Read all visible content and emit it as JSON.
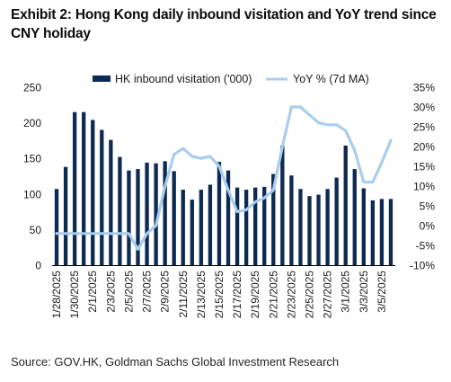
{
  "header": {
    "title": "Exhibit 2: Hong Kong daily inbound visitation and YoY trend since CNY holiday"
  },
  "footer": {
    "source": "Source: GOV.HK, Goldman Sachs Global Investment Research"
  },
  "colors": {
    "bar": "#0d2a52",
    "line": "#a9cdee",
    "text": "#1a1a1a"
  },
  "chart_data": {
    "type": "bar",
    "categories": [
      "1/28/2025",
      "1/29/2025",
      "1/30/2025",
      "1/31/2025",
      "2/1/2025",
      "2/2/2025",
      "2/3/2025",
      "2/4/2025",
      "2/5/2025",
      "2/6/2025",
      "2/7/2025",
      "2/8/2025",
      "2/9/2025",
      "2/10/2025",
      "2/11/2025",
      "2/12/2025",
      "2/13/2025",
      "2/14/2025",
      "2/15/2025",
      "2/16/2025",
      "2/17/2025",
      "2/18/2025",
      "2/19/2025",
      "2/20/2025",
      "2/21/2025",
      "2/22/2025",
      "2/23/2025",
      "2/24/2025",
      "2/25/2025",
      "2/26/2025",
      "2/27/2025",
      "2/28/2025",
      "3/1/2025",
      "3/2/2025",
      "3/3/2025",
      "3/4/2025",
      "3/5/2025",
      "3/6/2025"
    ],
    "xtick_labels": [
      "1/28/2025",
      "1/30/2025",
      "2/1/2025",
      "2/3/2025",
      "2/5/2025",
      "2/7/2025",
      "2/9/2025",
      "2/11/2025",
      "2/13/2025",
      "2/15/2025",
      "2/17/2025",
      "2/19/2025",
      "2/21/2025",
      "2/23/2025",
      "2/25/2025",
      "2/27/2025",
      "3/1/2025",
      "3/3/2025",
      "3/5/2025"
    ],
    "series": [
      {
        "name": "HK inbound visitation ('000)",
        "type": "bar",
        "axis": "left",
        "values": [
          107,
          138,
          215,
          215,
          204,
          190,
          176,
          152,
          133,
          135,
          144,
          143,
          146,
          132,
          106,
          92,
          106,
          113,
          145,
          133,
          109,
          106,
          109,
          110,
          128,
          168,
          126,
          107,
          97,
          99,
          107,
          123,
          168,
          135,
          108,
          91,
          93,
          93
        ]
      },
      {
        "name": "YoY % (7d MA)",
        "type": "line",
        "axis": "right",
        "values": [
          -2,
          -2,
          -2,
          -2,
          -2,
          -2,
          -2,
          -2,
          -2,
          -6,
          -2,
          0,
          10,
          18,
          19.5,
          17.5,
          17,
          17.5,
          15,
          9,
          3.5,
          4,
          6,
          7,
          9,
          20,
          30,
          30,
          28,
          26,
          25.5,
          25.5,
          24,
          19,
          11,
          11,
          16,
          21.5
        ]
      }
    ],
    "left_axis": {
      "min": 0,
      "max": 250,
      "ticks": [
        "0",
        "50",
        "100",
        "150",
        "200",
        "250"
      ]
    },
    "right_axis": {
      "min": -10,
      "max": 35,
      "ticks": [
        "-10%",
        "-5%",
        "0%",
        "5%",
        "10%",
        "15%",
        "20%",
        "25%",
        "30%",
        "35%"
      ]
    },
    "legend": "top"
  }
}
